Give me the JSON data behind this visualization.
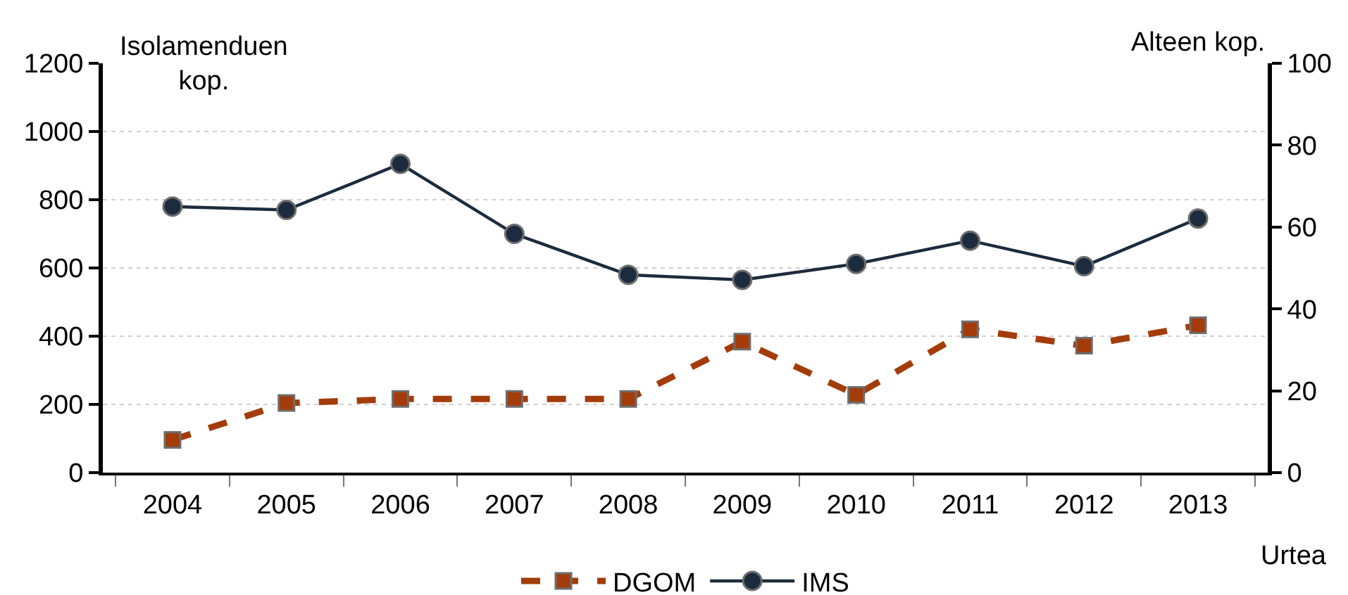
{
  "chart_data": {
    "type": "line",
    "categories": [
      "2004",
      "2005",
      "2006",
      "2007",
      "2008",
      "2009",
      "2010",
      "2011",
      "2012",
      "2013"
    ],
    "series": [
      {
        "name": "DGOM",
        "color": "#a33c0a",
        "axis": "y2",
        "marker": "square",
        "line_style": "dashed",
        "values": [
          8,
          17,
          18,
          18,
          18,
          32,
          19,
          35,
          31,
          36
        ]
      },
      {
        "name": "IMS",
        "color": "#1c2b3d",
        "axis": "y",
        "marker": "circle",
        "line_style": "solid",
        "values": [
          780,
          770,
          905,
          700,
          580,
          565,
          612,
          680,
          605,
          745
        ]
      }
    ],
    "ylabel": "Isolamenduen\nkop.",
    "y2label": "Alteen kop.",
    "xlabel": "Urtea",
    "ylim": [
      0,
      1200
    ],
    "yticks": [
      0,
      200,
      400,
      600,
      800,
      1000,
      1200
    ],
    "y2lim": [
      0,
      100
    ],
    "y2ticks": [
      0,
      20,
      40,
      60,
      80,
      100
    ],
    "grid": "y",
    "legend": "bottom"
  }
}
